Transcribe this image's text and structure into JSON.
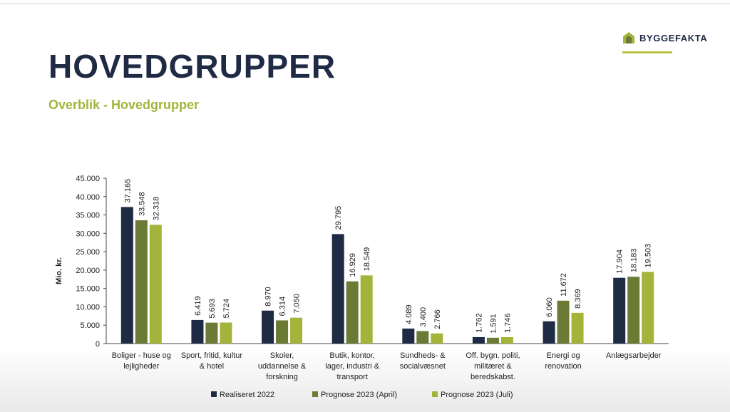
{
  "header": {
    "title": "HOVEDGRUPPER",
    "subtitle": "Overblik - Hovedgrupper",
    "logo_text": "BYGGEFAKTA"
  },
  "colors": {
    "navy": "#1f2a44",
    "olive": "#6b7a34",
    "lime": "#a4b43a"
  },
  "chart_data": {
    "type": "bar",
    "ylabel": "Mio. kr.",
    "ylim": [
      0,
      45000
    ],
    "yticks": [
      "0",
      "5.000",
      "10.000",
      "15.000",
      "20.000",
      "25.000",
      "30.000",
      "35.000",
      "40.000",
      "45.000"
    ],
    "categories": [
      [
        "Boliger - huse og",
        "lejligheder"
      ],
      [
        "Sport, fritid, kultur",
        "& hotel"
      ],
      [
        "Skoler,",
        "uddannelse &",
        "forskning"
      ],
      [
        "Butik, kontor,",
        "lager, industri &",
        "transport"
      ],
      [
        "Sundheds- &",
        "socialvæsnet"
      ],
      [
        "Off. bygn. politi,",
        "militæret &",
        "beredskabst."
      ],
      [
        "Energi og",
        "renovation"
      ],
      [
        "Anlægsarbejder"
      ]
    ],
    "series": [
      {
        "name": "Realiseret 2022",
        "color": "#1f2a44",
        "values": [
          37165,
          6419,
          8970,
          29795,
          4089,
          1762,
          6060,
          17904
        ],
        "labels": [
          "37.165",
          "6.419",
          "8.970",
          "29.795",
          "4.089",
          "1.762",
          "6.060",
          "17.904"
        ]
      },
      {
        "name": "Prognose 2023 (April)",
        "color": "#6b7a34",
        "values": [
          33548,
          5693,
          6314,
          16929,
          3400,
          1591,
          11672,
          18183
        ],
        "labels": [
          "33.548",
          "5.693",
          "6.314",
          "16.929",
          "3.400",
          "1.591",
          "11.672",
          "18.183"
        ]
      },
      {
        "name": "Prognose 2023 (Juli)",
        "color": "#a4b43a",
        "values": [
          32318,
          5724,
          7050,
          18549,
          2766,
          1746,
          8369,
          19503
        ],
        "labels": [
          "32.318",
          "5.724",
          "7.050",
          "18.549",
          "2.766",
          "1.746",
          "8.369",
          "19.503"
        ]
      }
    ],
    "legend_position": "bottom",
    "grid": false
  }
}
